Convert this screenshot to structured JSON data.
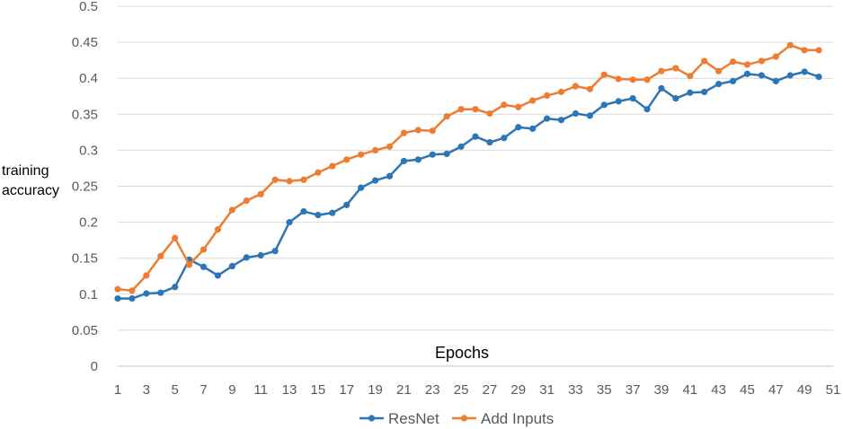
{
  "chart_data": {
    "type": "line",
    "xlabel": "Epochs",
    "ylabel_lines": [
      "training",
      "accuracy"
    ],
    "ylim": [
      0,
      0.5
    ],
    "yticks": [
      "0",
      "0.05",
      "0.1",
      "0.15",
      "0.2",
      "0.25",
      "0.3",
      "0.35",
      "0.4",
      "0.45",
      "0.5"
    ],
    "xlim": [
      1,
      51
    ],
    "xticks": [
      "1",
      "3",
      "5",
      "7",
      "9",
      "11",
      "13",
      "15",
      "17",
      "19",
      "21",
      "23",
      "25",
      "27",
      "29",
      "31",
      "33",
      "35",
      "37",
      "39",
      "41",
      "43",
      "45",
      "47",
      "49",
      "51"
    ],
    "grid": true,
    "legend_position": "bottom",
    "x": [
      1,
      2,
      3,
      4,
      5,
      6,
      7,
      8,
      9,
      10,
      11,
      12,
      13,
      14,
      15,
      16,
      17,
      18,
      19,
      20,
      21,
      22,
      23,
      24,
      25,
      26,
      27,
      28,
      29,
      30,
      31,
      32,
      33,
      34,
      35,
      36,
      37,
      38,
      39,
      40,
      41,
      42,
      43,
      44,
      45,
      46,
      47,
      48,
      49,
      50
    ],
    "series": [
      {
        "name": "ResNet",
        "color": "#2E75B6",
        "values": [
          0.094,
          0.094,
          0.101,
          0.102,
          0.11,
          0.148,
          0.138,
          0.126,
          0.139,
          0.151,
          0.154,
          0.16,
          0.2,
          0.215,
          0.21,
          0.213,
          0.224,
          0.248,
          0.258,
          0.264,
          0.285,
          0.287,
          0.294,
          0.295,
          0.305,
          0.319,
          0.311,
          0.317,
          0.332,
          0.33,
          0.344,
          0.342,
          0.351,
          0.348,
          0.363,
          0.368,
          0.372,
          0.357,
          0.386,
          0.372,
          0.38,
          0.381,
          0.392,
          0.396,
          0.406,
          0.404,
          0.396,
          0.404,
          0.409,
          0.402
        ]
      },
      {
        "name": "Add Inputs",
        "color": "#ED7D31",
        "values": [
          0.107,
          0.105,
          0.126,
          0.153,
          0.178,
          0.141,
          0.162,
          0.19,
          0.217,
          0.23,
          0.239,
          0.259,
          0.257,
          0.259,
          0.269,
          0.278,
          0.287,
          0.294,
          0.3,
          0.305,
          0.324,
          0.328,
          0.327,
          0.347,
          0.357,
          0.357,
          0.351,
          0.363,
          0.36,
          0.369,
          0.376,
          0.381,
          0.389,
          0.385,
          0.405,
          0.399,
          0.398,
          0.398,
          0.41,
          0.414,
          0.403,
          0.424,
          0.41,
          0.423,
          0.419,
          0.424,
          0.43,
          0.446,
          0.439,
          0.439
        ]
      }
    ]
  }
}
